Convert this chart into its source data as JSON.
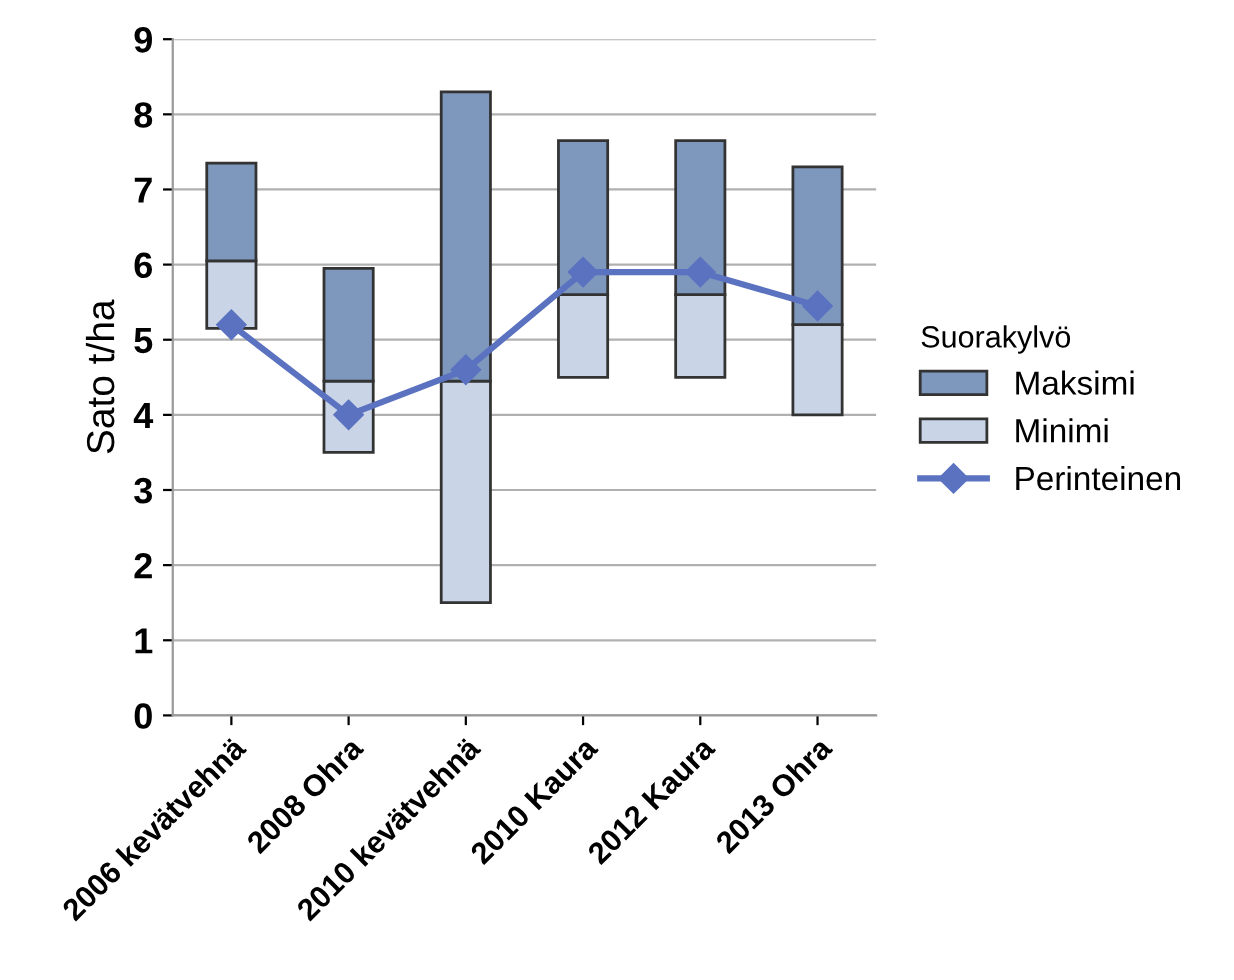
{
  "chart_data": {
    "type": "bar",
    "ylabel": "Sato t/ha",
    "legend_title": "Suorakylvö",
    "legend": "right",
    "grid": "y",
    "categories": [
      "2006 kevätvehnä",
      "2008 Ohra",
      "2010 kevätvehnä",
      "2010 Kaura",
      "2012 Kaura",
      "2013 Ohra"
    ],
    "ylim": [
      0,
      9
    ],
    "yticks": [
      0,
      1,
      2,
      3,
      4,
      5,
      6,
      7,
      8,
      9
    ],
    "series": [
      {
        "name": "Minimi",
        "color": "#c9d5e6",
        "base": [
          5.15,
          3.5,
          1.5,
          4.5,
          4.5,
          4.0
        ],
        "values": [
          0.9,
          0.95,
          2.95,
          1.1,
          1.1,
          1.2
        ]
      },
      {
        "name": "Maksimi",
        "color": "#7d97bd",
        "base": [
          6.05,
          4.45,
          4.45,
          5.6,
          5.6,
          5.2
        ],
        "values": [
          1.3,
          1.5,
          3.85,
          2.05,
          2.05,
          2.1
        ]
      },
      {
        "name": "Perinteinen",
        "type": "line",
        "color": "#5a72c0",
        "marker": "diamond",
        "values": [
          5.2,
          4.0,
          4.6,
          5.9,
          5.9,
          5.45
        ]
      }
    ]
  }
}
